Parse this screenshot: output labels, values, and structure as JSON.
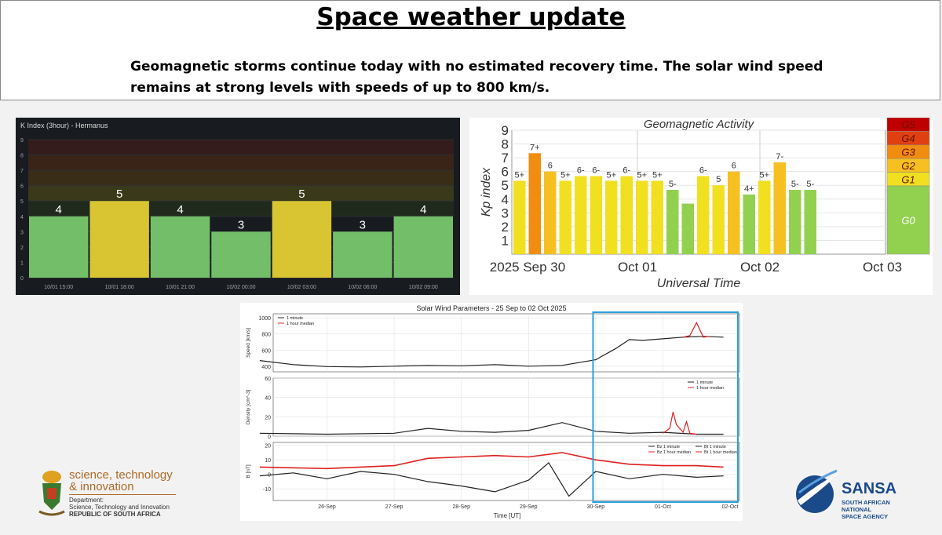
{
  "header": {
    "title": "Space weather update",
    "subtitle_line1": "Geomagnetic storms continue today with no estimated recovery time. The solar wind speed",
    "subtitle_line2": "remains at strong levels with speeds of up to 800 km/s."
  },
  "chart_data": [
    {
      "type": "bar",
      "title": "K Index (3hour) - Hermanus",
      "categories": [
        "10/01 15:00",
        "10/01 18:00",
        "10/01 21:00",
        "10/02 00:00",
        "10/02 03:00",
        "10/02 06:00",
        "10/02 09:00"
      ],
      "values": [
        4,
        5,
        4,
        3,
        5,
        3,
        4
      ],
      "labels": [
        "4",
        "5",
        "4",
        "3",
        "5",
        "3",
        "4"
      ],
      "ylim": [
        0,
        9
      ],
      "yticks": [
        "0",
        "1",
        "2",
        "3",
        "4",
        "5",
        "6",
        "7",
        "8",
        "9"
      ],
      "colors": {
        "quiet": "#73bf69",
        "active": "#d8c531",
        "background": "#181b1f",
        "title": "#d8d9da",
        "text": "#ffffff"
      }
    },
    {
      "type": "bar",
      "title": "Geomagnetic Activity",
      "ylabel": "Kp index",
      "xlabel": "Universal Time",
      "xticks": [
        "2025 Sep 30",
        "Oct 01",
        "Oct 02",
        "Oct 03"
      ],
      "values": [
        5.33,
        7.33,
        6,
        5.33,
        5.67,
        5.67,
        5.33,
        5.67,
        5.33,
        5.33,
        4.67,
        3.67,
        5.67,
        5,
        6,
        4.33,
        5.33,
        6.67,
        4.67,
        4.67
      ],
      "labels": [
        "5+",
        "7+",
        "6",
        "5+",
        "6-",
        "6-",
        "5+",
        "6-",
        "5+",
        "5+",
        "5-",
        "",
        "6-",
        "5",
        "6",
        "4+",
        "5+",
        "7-",
        "5-",
        "5-"
      ],
      "ylim": [
        0,
        9
      ],
      "yticks": [
        "1",
        "2",
        "3",
        "4",
        "5",
        "6",
        "7",
        "8",
        "9"
      ],
      "scale_labels": [
        "G5",
        "G4",
        "G3",
        "G2",
        "G1",
        "G0"
      ],
      "colors": {
        "quiet": "#92d050",
        "g1": "#f0e020",
        "g2": "#f5c020",
        "g3": "#f08c10",
        "g4": "#e04010",
        "g5": "#c00000"
      }
    },
    {
      "type": "line",
      "title": "Solar Wind Parameters - 25 Sep to 02 Oct 2025",
      "xlabel": "Time [UT]",
      "xticks": [
        "26-Sep",
        "27-Sep",
        "28-Sep",
        "29-Sep",
        "30-Sep",
        "01-Oct",
        "02-Oct"
      ],
      "panels": [
        {
          "ylabel": "Speed [km/s]",
          "yticks": [
            "400",
            "600",
            "800",
            "1000"
          ],
          "ylim": [
            330,
            1050
          ],
          "legend": [
            "1 minute",
            "1 hour median"
          ],
          "series": [
            {
              "name": "1 minute",
              "x": [
                0,
                0.5,
                1,
                1.5,
                2,
                2.5,
                3,
                3.5,
                4,
                4.5,
                5,
                5.3,
                5.5,
                5.7,
                6,
                6.3,
                6.6,
                6.9
              ],
              "values": [
                470,
                420,
                395,
                390,
                400,
                410,
                405,
                420,
                400,
                410,
                480,
                620,
                730,
                720,
                740,
                760,
                770,
                760
              ]
            },
            {
              "name": "1 hour median",
              "x": [
                6.3,
                6.4,
                6.5,
                6.6,
                6.7
              ],
              "values": [
                760,
                780,
                940,
                760,
                770
              ]
            }
          ]
        },
        {
          "ylabel": "Density [cm^-3]",
          "yticks": [
            "0",
            "20",
            "40",
            "60"
          ],
          "ylim": [
            0,
            60
          ],
          "legend": [
            "1 minute",
            "1 hour median"
          ],
          "series": [
            {
              "name": "1 minute",
              "x": [
                0,
                1,
                2,
                2.5,
                3,
                3.5,
                4,
                4.5,
                5,
                5.5,
                6,
                6.5,
                6.9
              ],
              "values": [
                3,
                2,
                3,
                8,
                5,
                4,
                6,
                14,
                5,
                3,
                4,
                2,
                2
              ]
            },
            {
              "name": "1 hour median",
              "x": [
                6.0,
                6.1,
                6.15,
                6.2,
                6.3,
                6.35,
                6.4,
                6.5
              ],
              "values": [
                3,
                8,
                25,
                12,
                4,
                15,
                3,
                2
              ]
            }
          ]
        },
        {
          "ylabel": "B [nT]",
          "yticks": [
            "-10",
            "0",
            "10",
            "20"
          ],
          "ylim": [
            -18,
            22
          ],
          "legend": [
            "Bz 1 minute",
            "Bt 1 minute",
            "Bz 1 hour median",
            "Bt 1 hour median"
          ],
          "series": [
            {
              "name": "Bt 1 hour median",
              "x": [
                0,
                1,
                2,
                2.5,
                3,
                3.5,
                4,
                4.5,
                5,
                5.5,
                6,
                6.5,
                6.9
              ],
              "values": [
                5,
                4,
                6,
                11,
                12,
                13,
                12,
                15,
                10,
                7,
                6,
                6,
                5
              ]
            },
            {
              "name": "Bz 1 minute",
              "x": [
                0,
                0.5,
                1,
                1.5,
                2,
                2.5,
                3,
                3.5,
                4,
                4.3,
                4.6,
                5,
                5.5,
                6,
                6.5,
                6.9
              ],
              "values": [
                -1,
                1,
                -3,
                2,
                0,
                -5,
                -8,
                -12,
                -4,
                8,
                -15,
                2,
                -3,
                0,
                -2,
                -1
              ]
            }
          ]
        }
      ]
    }
  ],
  "logos": {
    "dsi_line1": "science, technology",
    "dsi_line2": "& innovation",
    "dsi_dept": "Department:",
    "dsi_dept_name": "Science, Technology and Innovation",
    "dsi_country": "REPUBLIC OF SOUTH AFRICA",
    "sansa_name": "SANSA",
    "sansa_line1": "SOUTH AFRICAN NATIONAL",
    "sansa_line2": "SPACE AGENCY"
  }
}
